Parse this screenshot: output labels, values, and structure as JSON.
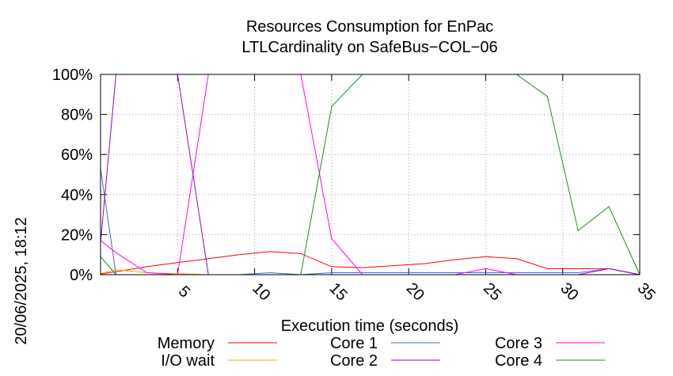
{
  "chart_data": {
    "type": "line",
    "title_lines": [
      "Resources Consumption for EnPac",
      "LTLCardinality on SafeBus−COL−06"
    ],
    "xlabel": "Execution time (seconds)",
    "ylabel": "",
    "side_label": "20/06/2025, 18:12",
    "xlim": [
      0,
      35
    ],
    "ylim": [
      0,
      100
    ],
    "x_ticks": [
      5,
      10,
      15,
      20,
      25,
      30,
      35
    ],
    "y_ticks": [
      0,
      20,
      40,
      60,
      80,
      100
    ],
    "y_tick_labels": [
      "0%",
      "20%",
      "40%",
      "60%",
      "80%",
      "100%"
    ],
    "grid": true,
    "legend_position": "bottom",
    "series": [
      {
        "name": "Memory",
        "color": "#ff0000",
        "x": [
          0,
          1,
          3,
          5,
          7,
          9,
          11,
          13,
          15,
          17,
          19,
          21,
          23,
          25,
          27,
          29,
          31,
          33,
          35
        ],
        "y": [
          0.3,
          1.5,
          4,
          6,
          8,
          10,
          11.5,
          10.5,
          4,
          3.5,
          4.5,
          5.5,
          7.5,
          9,
          8,
          3,
          3,
          3,
          0
        ]
      },
      {
        "name": "I/O wait",
        "color": "#ffa500",
        "x": [
          0,
          1,
          3,
          5,
          7,
          9,
          11,
          13,
          15,
          17,
          19,
          21,
          23,
          25,
          27,
          29,
          31,
          33,
          35
        ],
        "y": [
          0.5,
          2.5,
          1,
          0.5,
          0,
          0,
          0,
          0,
          0,
          0,
          0,
          0,
          0,
          0,
          0,
          0,
          0,
          0,
          0
        ]
      },
      {
        "name": "Core 1",
        "color": "#4169e1",
        "x": [
          0,
          1,
          3,
          5,
          7,
          9,
          11,
          13,
          15,
          17,
          19,
          21,
          23,
          25,
          27,
          29,
          31,
          33,
          35
        ],
        "y": [
          53,
          0,
          0,
          0,
          0,
          0,
          1,
          0,
          1,
          1,
          1,
          1,
          1,
          1,
          1,
          1,
          1,
          3,
          0
        ]
      },
      {
        "name": "Core 2",
        "color": "#9400d3",
        "x": [
          0,
          1,
          3,
          5,
          7,
          9,
          11,
          13,
          15,
          17,
          19,
          21,
          23,
          25,
          27,
          29,
          31,
          33,
          35
        ],
        "y": [
          16,
          100,
          100,
          100,
          0,
          0,
          0,
          0,
          0,
          0,
          0,
          0,
          0,
          0,
          0,
          0,
          0,
          3,
          0
        ]
      },
      {
        "name": "Core 3",
        "color": "#ff00ff",
        "x": [
          0,
          1,
          3,
          5,
          7,
          9,
          11,
          13,
          15,
          17,
          19,
          21,
          23,
          25,
          27,
          29,
          31,
          33,
          35
        ],
        "y": [
          17,
          11,
          1,
          0,
          100,
          100,
          100,
          100,
          18,
          0,
          0,
          0,
          0,
          3,
          0,
          0,
          0,
          0,
          0
        ]
      },
      {
        "name": "Core 4",
        "color": "#228b22",
        "x": [
          0,
          1,
          3,
          5,
          7,
          9,
          11,
          13,
          15,
          17,
          19,
          21,
          23,
          25,
          27,
          29,
          31,
          33,
          35
        ],
        "y": [
          9,
          0,
          0,
          0,
          0,
          0,
          0,
          0,
          84,
          100,
          100,
          100,
          100,
          100,
          100,
          89,
          22,
          34,
          0
        ]
      }
    ]
  }
}
